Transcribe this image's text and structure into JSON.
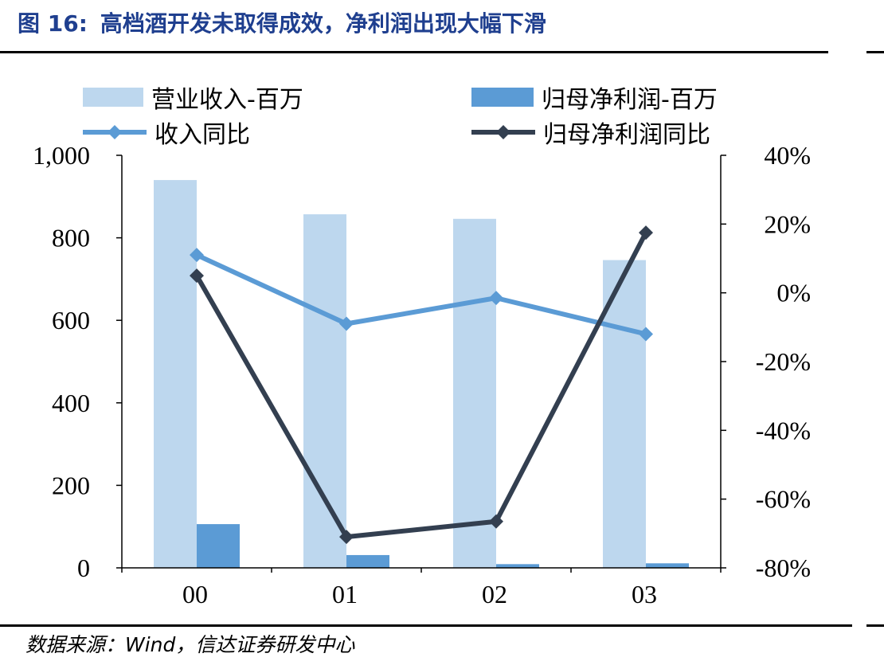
{
  "title": {
    "label": "图 16:",
    "text": "高档酒开发未取得成效，净利润出现大幅下滑"
  },
  "source": "数据来源：Wind，信达证券研发中心",
  "colors": {
    "revenue_bar": "#bdd7ee",
    "profit_bar": "#5b9bd5",
    "revenue_yoy_line": "#5b9bd5",
    "profit_yoy_line": "#333f50",
    "title": "#1f3f8f"
  },
  "legend": {
    "revenue": "营业收入-百万",
    "profit": "归母净利润-百万",
    "revenue_yoy": "收入同比",
    "profit_yoy": "归母净利润同比"
  },
  "chart_data": {
    "type": "bar",
    "categories": [
      "00",
      "01",
      "02",
      "03"
    ],
    "series": [
      {
        "name": "营业收入-百万",
        "type": "bar",
        "axis": "left",
        "values": [
          940,
          857,
          846,
          746
        ]
      },
      {
        "name": "归母净利润-百万",
        "type": "bar",
        "axis": "left",
        "values": [
          106,
          31,
          9,
          11
        ]
      },
      {
        "name": "收入同比",
        "type": "line",
        "axis": "right",
        "values": [
          0.11,
          -0.09,
          -0.015,
          -0.12
        ]
      },
      {
        "name": "归母净利润同比",
        "type": "line",
        "axis": "right",
        "values": [
          0.05,
          -0.71,
          -0.665,
          0.175
        ]
      }
    ],
    "y_left": {
      "min": 0,
      "max": 1000,
      "ticks": [
        0,
        200,
        400,
        600,
        800,
        1000
      ],
      "tick_labels": [
        "0",
        "200",
        "400",
        "600",
        "800",
        "1,000"
      ]
    },
    "y_right": {
      "min": -0.8,
      "max": 0.4,
      "ticks": [
        -0.8,
        -0.6,
        -0.4,
        -0.2,
        0,
        0.2,
        0.4
      ],
      "tick_labels": [
        "-80%",
        "-60%",
        "-40%",
        "-20%",
        "0%",
        "20%",
        "40%"
      ]
    },
    "grid": false,
    "legend_position": "top"
  }
}
